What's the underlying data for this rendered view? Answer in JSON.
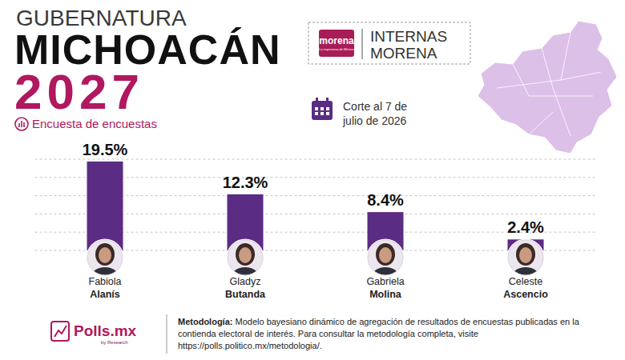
{
  "header": {
    "kicker": "GUBERNATURA",
    "title": "MICHOACÁN",
    "year": "2027",
    "subtitle": "Encuesta de encuestas",
    "badge_logo": "morena",
    "badge_logo_tagline": "La esperanza de México",
    "badge_title": [
      "INTERNAS",
      "MORENA"
    ],
    "cutoff": "Corte al 7 de julio de 2026"
  },
  "chart_data": {
    "type": "bar",
    "categories": [
      "Fabiola Alanís",
      "Gladyz Butanda",
      "Gabriela Molina",
      "Celeste Ascencio"
    ],
    "values": [
      19.5,
      12.3,
      8.4,
      2.4
    ],
    "value_labels": [
      "19.5%",
      "12.3%",
      "8.4%",
      "2.4%"
    ],
    "color": "#5b2c83",
    "ylim": [
      0,
      20
    ],
    "yticks": [
      0,
      4,
      8,
      12,
      16,
      20
    ],
    "grid": true,
    "data_labels": true,
    "tick_labels": false
  },
  "footer": {
    "brand": "Polls.mx",
    "brand_tagline": "by Research",
    "methodology_label": "Metodología:",
    "methodology": "Modelo bayesiano dinámico de agregación de resultados de encuestas publicadas en la contienda electoral de interés. Para consultar la metodología completa, visite https://polls.politico.mx/metodologia/."
  }
}
